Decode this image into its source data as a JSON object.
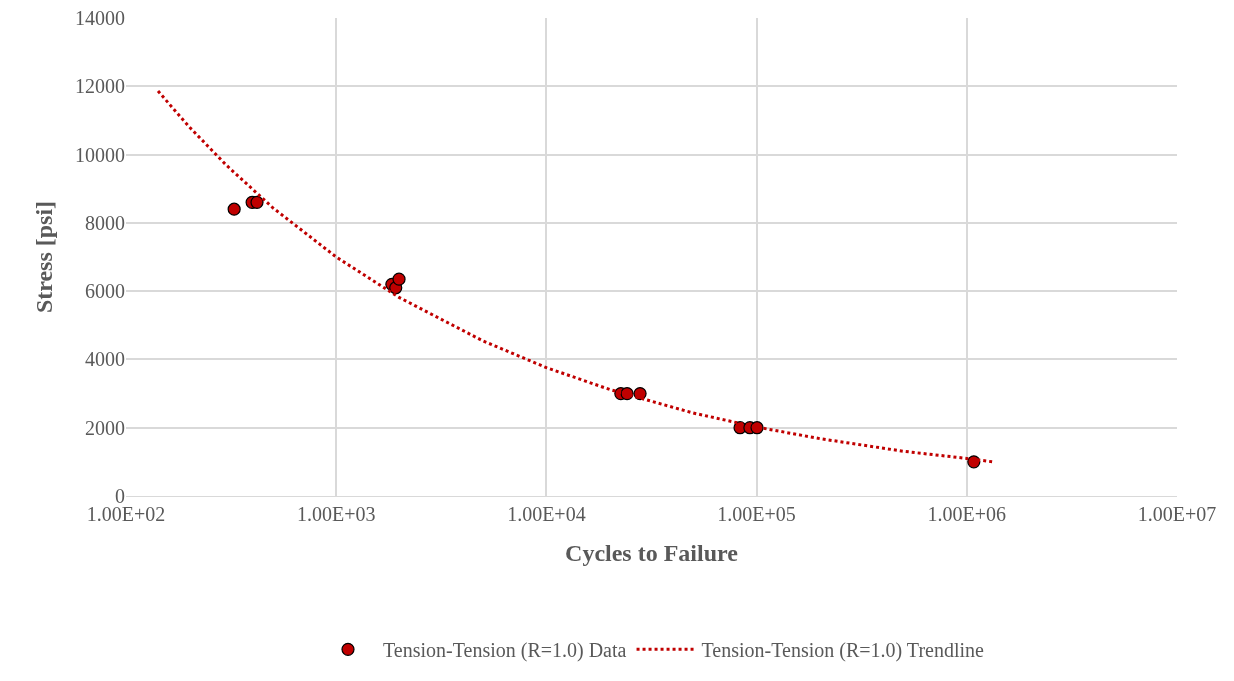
{
  "chart_data": {
    "type": "scatter",
    "xlabel": "Cycles to Failure",
    "ylabel": "Stress [psi]",
    "log": "x",
    "grid": true,
    "legend": "bottom",
    "xlim": [
      100,
      10000000
    ],
    "xticks": [
      {
        "value": 100,
        "label": "1.00E+02"
      },
      {
        "value": 1000,
        "label": "1.00E+03"
      },
      {
        "value": 10000,
        "label": "1.00E+04"
      },
      {
        "value": 100000,
        "label": "1.00E+05"
      },
      {
        "value": 1000000,
        "label": "1.00E+06"
      },
      {
        "value": 10000000,
        "label": "1.00E+07"
      }
    ],
    "ylim": [
      0,
      14000
    ],
    "yticks": [
      0,
      2000,
      4000,
      6000,
      8000,
      10000,
      12000,
      14000
    ],
    "series": [
      {
        "name": "Tension-Tension (R=1.0) Data",
        "marker": "circle",
        "color": "#c00000",
        "x": [
          327,
          398,
          420,
          1840,
          1920,
          1990,
          22600,
          24200,
          27900,
          83400,
          92900,
          100500,
          1080000
        ],
        "values": [
          8400,
          8600,
          8600,
          6200,
          6100,
          6350,
          3000,
          3000,
          3000,
          2000,
          2000,
          2000,
          1000
        ]
      },
      {
        "name": "Tension-Tension (R=1.0) Trendline",
        "type": "line",
        "line_style": "dotted",
        "color": "#c00000",
        "x": [
          142,
          200,
          300,
          500,
          1000,
          2000,
          5000,
          10000,
          20000,
          50000,
          100000,
          200000,
          500000,
          1000000,
          1330000
        ],
        "values": [
          11860,
          10810,
          9690,
          8440,
          7000,
          5810,
          4540,
          3760,
          3120,
          2430,
          2020,
          1680,
          1310,
          1100,
          1000
        ]
      }
    ]
  }
}
